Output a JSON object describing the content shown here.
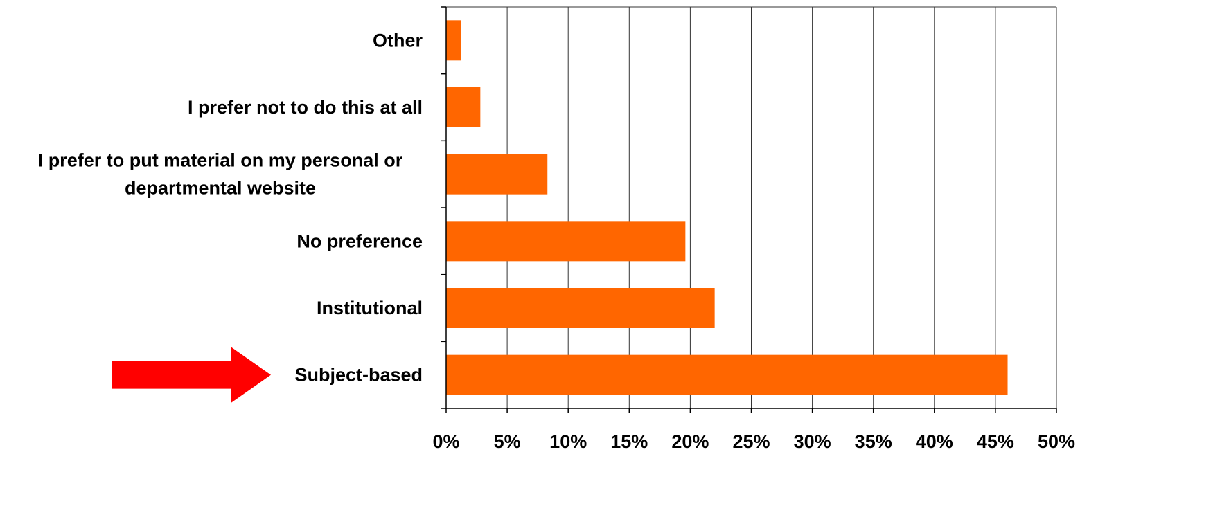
{
  "chart_data": {
    "type": "bar",
    "orientation": "horizontal",
    "categories": [
      [
        "Other"
      ],
      [
        "I prefer not to do this at all"
      ],
      [
        "I prefer to put material on my personal or",
        "departmental website"
      ],
      [
        "No preference"
      ],
      [
        "Institutional"
      ],
      [
        "Subject-based"
      ]
    ],
    "values": [
      1.2,
      2.8,
      8.3,
      19.6,
      22.0,
      46.0
    ],
    "xlim": [
      0,
      50
    ],
    "x_ticks": [
      0,
      5,
      10,
      15,
      20,
      25,
      30,
      35,
      40,
      45,
      50
    ],
    "x_tick_labels": [
      "0%",
      "5%",
      "10%",
      "15%",
      "20%",
      "25%",
      "30%",
      "35%",
      "40%",
      "45%",
      "50%"
    ],
    "value_unit": "%",
    "title": "",
    "xlabel": "",
    "ylabel": "",
    "grid": "vertical",
    "legend": "none",
    "annotations": [
      {
        "type": "arrow",
        "points_to": "Subject-based",
        "direction": "right"
      }
    ]
  },
  "colors": {
    "bar": "#FF6600",
    "arrow": "#FF0000",
    "grid": "#333333",
    "axis": "#000000",
    "text": "#000000",
    "background": "#FFFFFF"
  }
}
